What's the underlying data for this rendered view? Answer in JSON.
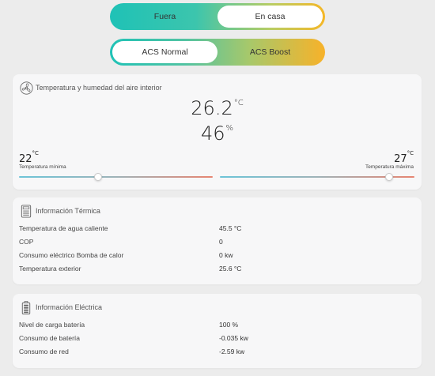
{
  "mode_toggle": {
    "options": [
      "Fuera",
      "En casa"
    ],
    "selected": "En casa"
  },
  "acs_toggle": {
    "options": [
      "ACS Normal",
      "ACS Boost"
    ],
    "selected": "ACS Normal"
  },
  "indoor": {
    "title": "Temperatura y humedad del aire interior",
    "temperature": "26.2",
    "temperature_unit": "°C",
    "humidity": "46",
    "humidity_unit": "%",
    "min": {
      "value": "22",
      "unit": "°C",
      "label": "Temperatura mínima"
    },
    "max": {
      "value": "27",
      "unit": "°C",
      "label": "Temperatura máxima"
    },
    "min_slider_level": 0.41,
    "max_slider_level": 0.87
  },
  "thermal": {
    "title": "Información Térmica",
    "rows": [
      {
        "label": "Temperatura de agua caliente",
        "value": "45.5 °C"
      },
      {
        "label": "COP",
        "value": "0"
      },
      {
        "label": "Consumo eléctrico Bomba de calor",
        "value": "0 kw"
      },
      {
        "label": "Temperatura exterior",
        "value": "25.6 °C"
      }
    ]
  },
  "electric": {
    "title": "Información Eléctrica",
    "rows": [
      {
        "label": "Nivel de carga batería",
        "value": "100 %"
      },
      {
        "label": "Consumo de batería",
        "value": "-0.035 kw"
      },
      {
        "label": "Consumo de red",
        "value": "-2.59 kw"
      }
    ]
  },
  "icons": {
    "indoor": "fan-icon",
    "thermal": "heat-pump-icon",
    "electric": "battery-icon"
  }
}
